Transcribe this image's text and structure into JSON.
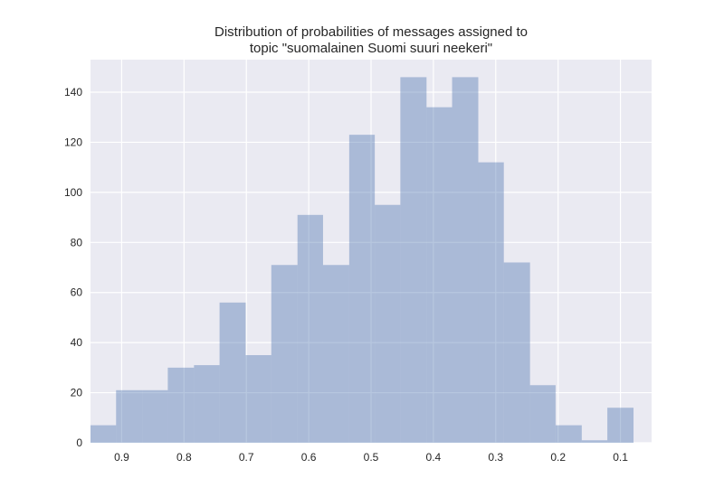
{
  "chart_data": {
    "type": "bar",
    "title_lines": [
      "Distribution of probabilities of messages assigned to",
      "topic \"suomalainen Suomi suuri neekeri\""
    ],
    "xlabel": "",
    "ylabel": "",
    "x_reversed": true,
    "xlim": [
      0.95,
      0.05
    ],
    "ylim": [
      0,
      153
    ],
    "grid": true,
    "x_ticks": [
      0.9,
      0.8,
      0.7,
      0.6,
      0.5,
      0.4,
      0.3,
      0.2,
      0.1
    ],
    "x_tick_labels": [
      "0.9",
      "0.8",
      "0.7",
      "0.6",
      "0.5",
      "0.4",
      "0.3",
      "0.2",
      "0.1"
    ],
    "y_ticks": [
      0,
      20,
      40,
      60,
      80,
      100,
      120,
      140
    ],
    "y_tick_labels": [
      "0",
      "20",
      "40",
      "60",
      "80",
      "100",
      "120",
      "140"
    ],
    "bin_edges": [
      0.95,
      0.909,
      0.867,
      0.826,
      0.784,
      0.743,
      0.701,
      0.66,
      0.618,
      0.577,
      0.535,
      0.494,
      0.453,
      0.411,
      0.37,
      0.328,
      0.287,
      0.245,
      0.204,
      0.162,
      0.121,
      0.079
    ],
    "values": [
      7,
      21,
      21,
      30,
      31,
      56,
      35,
      71,
      91,
      71,
      123,
      95,
      146,
      134,
      146,
      112,
      72,
      23,
      7,
      1,
      14
    ],
    "bar_color": "#4c72b0",
    "bar_opacity": 0.4,
    "background_color": "#eaeaf2",
    "grid_color": "#ffffff"
  }
}
